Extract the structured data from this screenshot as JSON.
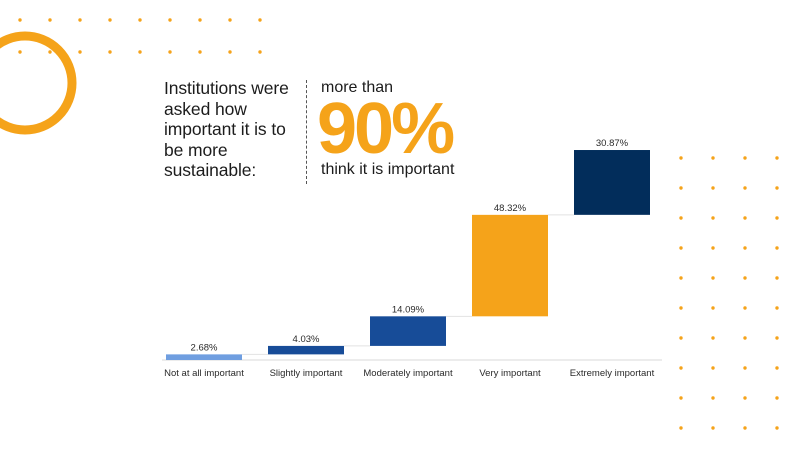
{
  "question": "Institutions were asked how important it is to be more sustainable:",
  "callout": {
    "pre": "more than",
    "value": "90%",
    "post": "think it is important"
  },
  "colors": {
    "accent": "#f5a31a",
    "navy": "#022d5b",
    "blue": "#174c98",
    "light_blue": "#6f9ee0",
    "dots": "#f5a31a"
  },
  "chart_data": {
    "type": "waterfall",
    "categories": [
      "Not at all important",
      "Slightly important",
      "Moderately important",
      "Very important",
      "Extremely important"
    ],
    "values": [
      2.68,
      4.03,
      14.09,
      48.32,
      30.87
    ],
    "data_labels": [
      "2.68%",
      "4.03%",
      "14.09%",
      "48.32%",
      "30.87%"
    ],
    "bar_colors": [
      "#6f9ee0",
      "#174c98",
      "#174c98",
      "#f5a31a",
      "#022d5b"
    ],
    "ylim": [
      0,
      100
    ],
    "grid": false,
    "legend": "none"
  }
}
